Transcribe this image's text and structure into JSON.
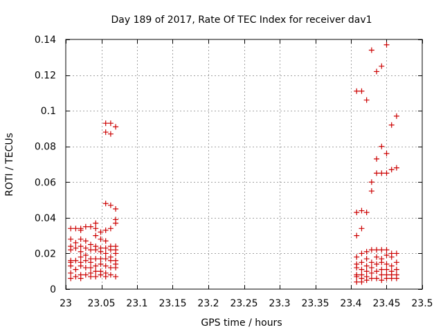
{
  "chart_data": {
    "type": "scatter",
    "title": "Day 189 of 2017, Rate Of TEC Index for receiver dav1",
    "xlabel": "GPS time / hours",
    "ylabel": "ROTI / TECUs",
    "xlim": [
      23,
      23.5
    ],
    "ylim": [
      0,
      0.14
    ],
    "xticks": [
      23,
      23.05,
      23.1,
      23.15,
      23.2,
      23.25,
      23.3,
      23.35,
      23.4,
      23.45,
      23.5
    ],
    "xtick_labels": [
      "23",
      "23.05",
      "23.1",
      "23.15",
      "23.2",
      "23.25",
      "23.3",
      "23.35",
      "23.4",
      "23.45",
      "23.5"
    ],
    "yticks": [
      0,
      0.02,
      0.04,
      0.06,
      0.08,
      0.1,
      0.12,
      0.14
    ],
    "ytick_labels": [
      "0",
      "0.02",
      "0.04",
      "0.06",
      "0.08",
      "0.1",
      "0.12",
      "0.14"
    ],
    "grid": true,
    "marker": "+",
    "color": "#cc0000",
    "series": [
      {
        "name": "dav1",
        "points": [
          [
            23.007,
            0.034
          ],
          [
            23.007,
            0.028
          ],
          [
            23.007,
            0.024
          ],
          [
            23.007,
            0.022
          ],
          [
            23.007,
            0.016
          ],
          [
            23.007,
            0.015
          ],
          [
            23.007,
            0.013
          ],
          [
            23.007,
            0.009
          ],
          [
            23.007,
            0.006
          ],
          [
            23.014,
            0.034
          ],
          [
            23.014,
            0.026
          ],
          [
            23.014,
            0.023
          ],
          [
            23.014,
            0.016
          ],
          [
            23.014,
            0.011
          ],
          [
            23.014,
            0.007
          ],
          [
            23.021,
            0.034
          ],
          [
            23.021,
            0.033
          ],
          [
            23.021,
            0.028
          ],
          [
            23.021,
            0.024
          ],
          [
            23.021,
            0.021
          ],
          [
            23.021,
            0.018
          ],
          [
            23.021,
            0.015
          ],
          [
            23.021,
            0.013
          ],
          [
            23.021,
            0.008
          ],
          [
            23.021,
            0.006
          ],
          [
            23.028,
            0.035
          ],
          [
            23.028,
            0.027
          ],
          [
            23.028,
            0.023
          ],
          [
            23.028,
            0.019
          ],
          [
            23.028,
            0.016
          ],
          [
            23.028,
            0.012
          ],
          [
            23.028,
            0.008
          ],
          [
            23.035,
            0.035
          ],
          [
            23.035,
            0.025
          ],
          [
            23.035,
            0.022
          ],
          [
            23.035,
            0.017
          ],
          [
            23.035,
            0.015
          ],
          [
            23.035,
            0.012
          ],
          [
            23.035,
            0.009
          ],
          [
            23.035,
            0.007
          ],
          [
            23.042,
            0.037
          ],
          [
            23.042,
            0.034
          ],
          [
            23.042,
            0.03
          ],
          [
            23.042,
            0.024
          ],
          [
            23.042,
            0.022
          ],
          [
            23.042,
            0.017
          ],
          [
            23.042,
            0.013
          ],
          [
            23.042,
            0.01
          ],
          [
            23.042,
            0.007
          ],
          [
            23.049,
            0.032
          ],
          [
            23.049,
            0.028
          ],
          [
            23.049,
            0.023
          ],
          [
            23.049,
            0.021
          ],
          [
            23.049,
            0.017
          ],
          [
            23.049,
            0.014
          ],
          [
            23.049,
            0.01
          ],
          [
            23.049,
            0.008
          ],
          [
            23.056,
            0.093
          ],
          [
            23.056,
            0.088
          ],
          [
            23.056,
            0.048
          ],
          [
            23.056,
            0.033
          ],
          [
            23.056,
            0.027
          ],
          [
            23.056,
            0.023
          ],
          [
            23.056,
            0.02
          ],
          [
            23.056,
            0.017
          ],
          [
            23.056,
            0.013
          ],
          [
            23.056,
            0.009
          ],
          [
            23.056,
            0.007
          ],
          [
            23.063,
            0.093
          ],
          [
            23.063,
            0.087
          ],
          [
            23.063,
            0.047
          ],
          [
            23.063,
            0.034
          ],
          [
            23.063,
            0.024
          ],
          [
            23.063,
            0.022
          ],
          [
            23.063,
            0.018
          ],
          [
            23.063,
            0.016
          ],
          [
            23.063,
            0.012
          ],
          [
            23.063,
            0.008
          ],
          [
            23.07,
            0.091
          ],
          [
            23.07,
            0.045
          ],
          [
            23.07,
            0.039
          ],
          [
            23.07,
            0.037
          ],
          [
            23.07,
            0.024
          ],
          [
            23.07,
            0.022
          ],
          [
            23.07,
            0.02
          ],
          [
            23.07,
            0.016
          ],
          [
            23.07,
            0.014
          ],
          [
            23.07,
            0.012
          ],
          [
            23.07,
            0.007
          ],
          [
            23.408,
            0.111
          ],
          [
            23.408,
            0.043
          ],
          [
            23.408,
            0.03
          ],
          [
            23.408,
            0.018
          ],
          [
            23.408,
            0.014
          ],
          [
            23.408,
            0.012
          ],
          [
            23.408,
            0.008
          ],
          [
            23.408,
            0.007
          ],
          [
            23.408,
            0.004
          ],
          [
            23.415,
            0.111
          ],
          [
            23.415,
            0.044
          ],
          [
            23.415,
            0.034
          ],
          [
            23.415,
            0.02
          ],
          [
            23.415,
            0.015
          ],
          [
            23.415,
            0.011
          ],
          [
            23.415,
            0.008
          ],
          [
            23.415,
            0.006
          ],
          [
            23.415,
            0.004
          ],
          [
            23.422,
            0.106
          ],
          [
            23.422,
            0.043
          ],
          [
            23.422,
            0.021
          ],
          [
            23.422,
            0.017
          ],
          [
            23.422,
            0.013
          ],
          [
            23.422,
            0.01
          ],
          [
            23.422,
            0.007
          ],
          [
            23.422,
            0.005
          ],
          [
            23.429,
            0.134
          ],
          [
            23.429,
            0.06
          ],
          [
            23.429,
            0.055
          ],
          [
            23.429,
            0.022
          ],
          [
            23.429,
            0.015
          ],
          [
            23.429,
            0.012
          ],
          [
            23.429,
            0.009
          ],
          [
            23.429,
            0.006
          ],
          [
            23.436,
            0.122
          ],
          [
            23.436,
            0.073
          ],
          [
            23.436,
            0.065
          ],
          [
            23.436,
            0.022
          ],
          [
            23.436,
            0.018
          ],
          [
            23.436,
            0.014
          ],
          [
            23.436,
            0.01
          ],
          [
            23.436,
            0.006
          ],
          [
            23.443,
            0.125
          ],
          [
            23.443,
            0.08
          ],
          [
            23.443,
            0.065
          ],
          [
            23.443,
            0.022
          ],
          [
            23.443,
            0.017
          ],
          [
            23.443,
            0.015
          ],
          [
            23.443,
            0.011
          ],
          [
            23.443,
            0.008
          ],
          [
            23.443,
            0.005
          ],
          [
            23.45,
            0.137
          ],
          [
            23.45,
            0.076
          ],
          [
            23.45,
            0.065
          ],
          [
            23.45,
            0.022
          ],
          [
            23.45,
            0.019
          ],
          [
            23.45,
            0.014
          ],
          [
            23.45,
            0.011
          ],
          [
            23.45,
            0.008
          ],
          [
            23.45,
            0.006
          ],
          [
            23.457,
            0.092
          ],
          [
            23.457,
            0.067
          ],
          [
            23.457,
            0.02
          ],
          [
            23.457,
            0.018
          ],
          [
            23.457,
            0.013
          ],
          [
            23.457,
            0.01
          ],
          [
            23.457,
            0.008
          ],
          [
            23.457,
            0.006
          ],
          [
            23.464,
            0.097
          ],
          [
            23.464,
            0.068
          ],
          [
            23.464,
            0.02
          ],
          [
            23.464,
            0.015
          ],
          [
            23.464,
            0.011
          ],
          [
            23.464,
            0.008
          ],
          [
            23.464,
            0.006
          ]
        ]
      }
    ]
  }
}
